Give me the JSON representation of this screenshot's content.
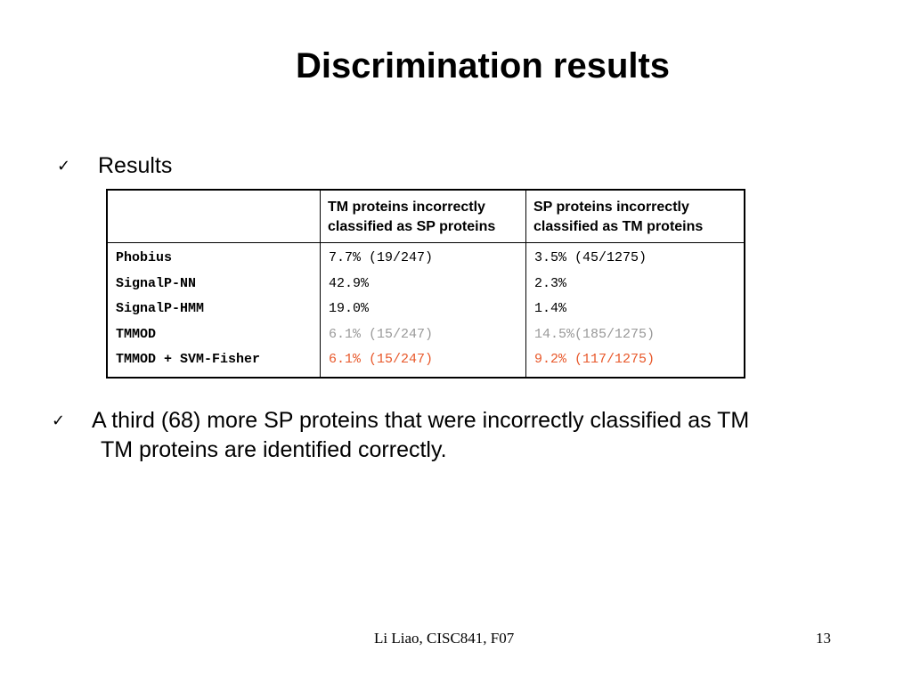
{
  "slide": {
    "title": "Discrimination results",
    "bullets": [
      {
        "check": "✓",
        "text": "Results"
      },
      {
        "check": "✓",
        "line1": "A third (68) more SP proteins that were incorrectly classified as TM",
        "line2": "TM proteins are identified correctly."
      }
    ]
  },
  "table": {
    "headers": [
      "",
      "TM proteins incorrectly classified as SP proteins",
      "SP proteins incorrectly classified as TM proteins"
    ],
    "rows": [
      {
        "method": "Phobius",
        "tm": "7.7% (19/247)",
        "sp": "3.5% (45/1275)"
      },
      {
        "method": "SignalP-NN",
        "tm": "42.9%",
        "sp": "2.3%"
      },
      {
        "method": "SignalP-HMM",
        "tm": "19.0%",
        "sp": "1.4%"
      },
      {
        "method": "TMMOD",
        "tm": "6.1% (15/247)",
        "sp": "14.5%(185/1275)"
      },
      {
        "method": "TMMOD + SVM-Fisher",
        "tm": "6.1% (15/247)",
        "sp": "9.2% (117/1275)"
      }
    ],
    "colors": {
      "gray": "#999999",
      "red": "#e8582a"
    }
  },
  "footer": {
    "credit": "Li Liao, CISC841, F07",
    "page_number": "13"
  }
}
